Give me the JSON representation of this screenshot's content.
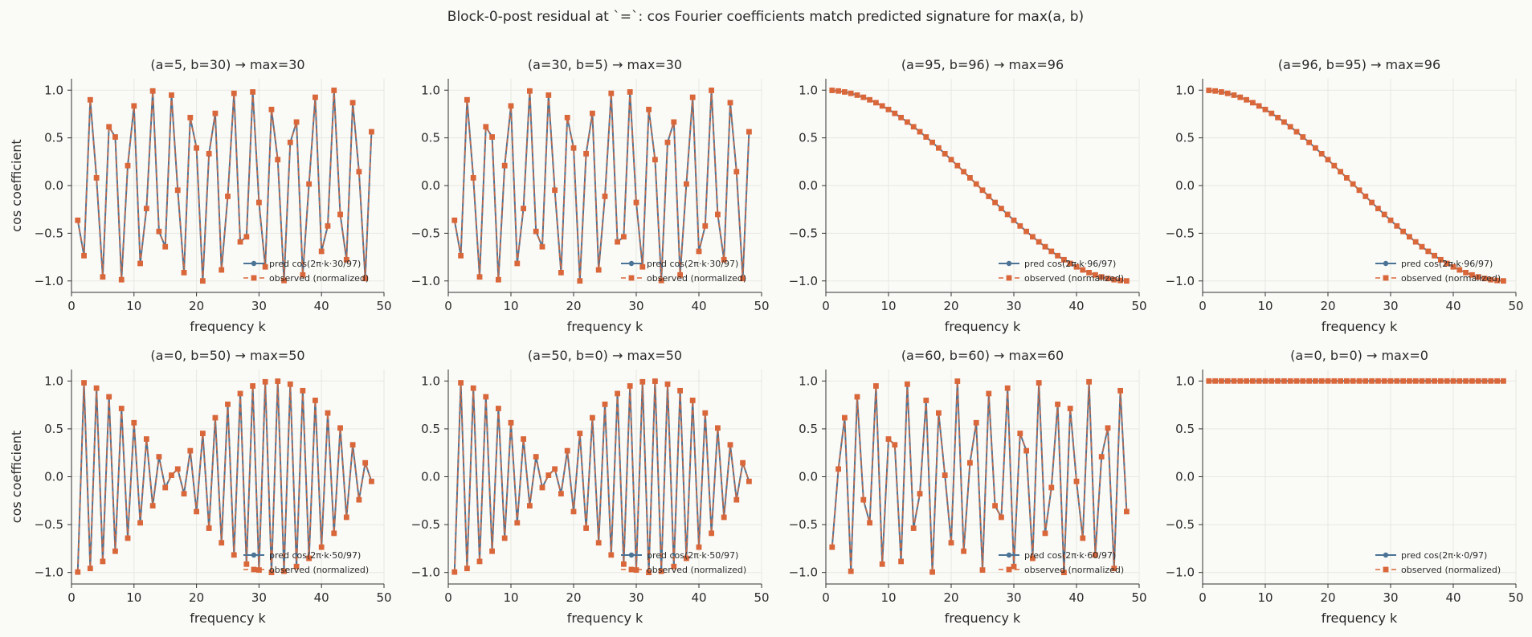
{
  "figure_title": "Block-0-post residual at `=`: cos Fourier coefficients match predicted signature for max(a, b)",
  "colors": {
    "pred": "#4a7396",
    "observed": "#d9673a"
  },
  "chart_data": [
    {
      "type": "line",
      "title": "(a=5, b=30) → max=30",
      "m": 30,
      "xlabel": "frequency k",
      "ylabel": "cos coefficient",
      "xlim": [
        0,
        50
      ],
      "ylim": [
        -1.12,
        1.12
      ],
      "xticks": [
        0,
        10,
        20,
        30,
        40,
        50
      ],
      "yticks": [
        -1.0,
        -0.5,
        0.0,
        0.5,
        1.0
      ],
      "legend_position": "lower right",
      "series": [
        {
          "name": "pred cos(2π·k·30/97)",
          "marker": "circle",
          "line": "solid"
        },
        {
          "name": "observed (normalized)",
          "marker": "square",
          "line": "dashed"
        }
      ]
    },
    {
      "type": "line",
      "title": "(a=30, b=5) → max=30",
      "m": 30,
      "xlabel": "frequency k",
      "ylabel": "",
      "xlim": [
        0,
        50
      ],
      "ylim": [
        -1.12,
        1.12
      ],
      "xticks": [
        0,
        10,
        20,
        30,
        40,
        50
      ],
      "yticks": [
        -1.0,
        -0.5,
        0.0,
        0.5,
        1.0
      ],
      "legend_position": "lower right",
      "series": [
        {
          "name": "pred cos(2π·k·30/97)",
          "marker": "circle",
          "line": "solid"
        },
        {
          "name": "observed (normalized)",
          "marker": "square",
          "line": "dashed"
        }
      ]
    },
    {
      "type": "line",
      "title": "(a=95, b=96) → max=96",
      "m": 96,
      "xlabel": "frequency k",
      "ylabel": "",
      "xlim": [
        0,
        50
      ],
      "ylim": [
        -1.12,
        1.12
      ],
      "xticks": [
        0,
        10,
        20,
        30,
        40,
        50
      ],
      "yticks": [
        -1.0,
        -0.5,
        0.0,
        0.5,
        1.0
      ],
      "legend_position": "lower right",
      "series": [
        {
          "name": "pred cos(2π·k·96/97)",
          "marker": "circle",
          "line": "solid"
        },
        {
          "name": "observed (normalized)",
          "marker": "square",
          "line": "dashed"
        }
      ]
    },
    {
      "type": "line",
      "title": "(a=96, b=95) → max=96",
      "m": 96,
      "xlabel": "frequency k",
      "ylabel": "",
      "xlim": [
        0,
        50
      ],
      "ylim": [
        -1.12,
        1.12
      ],
      "xticks": [
        0,
        10,
        20,
        30,
        40,
        50
      ],
      "yticks": [
        -1.0,
        -0.5,
        0.0,
        0.5,
        1.0
      ],
      "legend_position": "lower right",
      "series": [
        {
          "name": "pred cos(2π·k·96/97)",
          "marker": "circle",
          "line": "solid"
        },
        {
          "name": "observed (normalized)",
          "marker": "square",
          "line": "dashed"
        }
      ]
    },
    {
      "type": "line",
      "title": "(a=0, b=50) → max=50",
      "m": 50,
      "xlabel": "frequency k",
      "ylabel": "cos coefficient",
      "xlim": [
        0,
        50
      ],
      "ylim": [
        -1.12,
        1.12
      ],
      "xticks": [
        0,
        10,
        20,
        30,
        40,
        50
      ],
      "yticks": [
        -1.0,
        -0.5,
        0.0,
        0.5,
        1.0
      ],
      "legend_position": "lower right",
      "series": [
        {
          "name": "pred cos(2π·k·50/97)",
          "marker": "circle",
          "line": "solid"
        },
        {
          "name": "observed (normalized)",
          "marker": "square",
          "line": "dashed"
        }
      ]
    },
    {
      "type": "line",
      "title": "(a=50, b=0) → max=50",
      "m": 50,
      "xlabel": "frequency k",
      "ylabel": "",
      "xlim": [
        0,
        50
      ],
      "ylim": [
        -1.12,
        1.12
      ],
      "xticks": [
        0,
        10,
        20,
        30,
        40,
        50
      ],
      "yticks": [
        -1.0,
        -0.5,
        0.0,
        0.5,
        1.0
      ],
      "legend_position": "lower right",
      "series": [
        {
          "name": "pred cos(2π·k·50/97)",
          "marker": "circle",
          "line": "solid"
        },
        {
          "name": "observed (normalized)",
          "marker": "square",
          "line": "dashed"
        }
      ]
    },
    {
      "type": "line",
      "title": "(a=60, b=60) → max=60",
      "m": 60,
      "xlabel": "frequency k",
      "ylabel": "",
      "xlim": [
        0,
        50
      ],
      "ylim": [
        -1.12,
        1.12
      ],
      "xticks": [
        0,
        10,
        20,
        30,
        40,
        50
      ],
      "yticks": [
        -1.0,
        -0.5,
        0.0,
        0.5,
        1.0
      ],
      "legend_position": "lower right",
      "series": [
        {
          "name": "pred cos(2π·k·60/97)",
          "marker": "circle",
          "line": "solid"
        },
        {
          "name": "observed (normalized)",
          "marker": "square",
          "line": "dashed"
        }
      ]
    },
    {
      "type": "line",
      "title": "(a=0, b=0) → max=0",
      "m": 0,
      "xlabel": "frequency k",
      "ylabel": "",
      "xlim": [
        0,
        50
      ],
      "ylim": [
        -1.12,
        1.12
      ],
      "xticks": [
        0,
        10,
        20,
        30,
        40,
        50
      ],
      "yticks": [
        -1.0,
        -0.5,
        0.0,
        0.5,
        1.0
      ],
      "legend_position": "lower right",
      "series": [
        {
          "name": "pred cos(2π·k·0/97)",
          "marker": "circle",
          "line": "solid"
        },
        {
          "name": "observed (normalized)",
          "marker": "square",
          "line": "dashed"
        }
      ]
    }
  ]
}
